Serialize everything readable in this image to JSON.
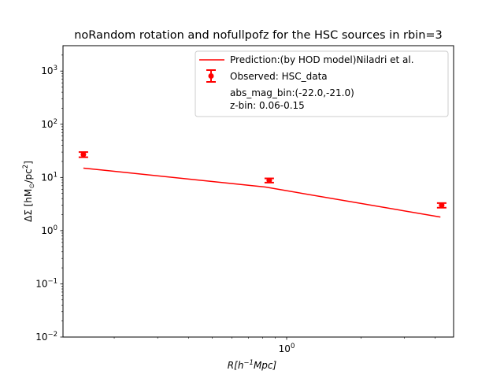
{
  "chart_data": {
    "type": "scatter",
    "title": "noRandom rotation and nofullpofz for the HSC sources in rbin=3",
    "xlabel": "R[h⁻¹Mpc]",
    "ylabel": "ΔΣ [hM⊙/pc²]",
    "xscale": "log",
    "yscale": "log",
    "xlim": [
      0.124,
      4.75
    ],
    "ylim": [
      0.01,
      3000
    ],
    "x_tick_labels": [
      {
        "value": 1,
        "base": "10",
        "exp": "0"
      }
    ],
    "y_tick_labels": [
      {
        "value": 0.01,
        "base": "10",
        "exp": "−2"
      },
      {
        "value": 0.1,
        "base": "10",
        "exp": "−1"
      },
      {
        "value": 1,
        "base": "10",
        "exp": "0"
      },
      {
        "value": 10,
        "base": "10",
        "exp": "1"
      },
      {
        "value": 100,
        "base": "10",
        "exp": "2"
      },
      {
        "value": 1000,
        "base": "10",
        "exp": "3"
      }
    ],
    "grid": false,
    "legend_position": "top-right",
    "series": [
      {
        "name": "Prediction:(by HOD model)Niladri et al.",
        "kind": "line",
        "color": "#ff0000",
        "x": [
          0.15,
          0.82,
          4.2
        ],
        "y": [
          15.0,
          6.6,
          1.8
        ]
      },
      {
        "name": "Observed: HSC_data",
        "kind": "errorbar",
        "color": "#ff0000",
        "x": [
          0.15,
          0.85,
          4.25
        ],
        "y": [
          27.0,
          8.8,
          3.0
        ],
        "yerr_low": [
          3.0,
          0.8,
          0.3
        ],
        "yerr_high": [
          3.0,
          0.8,
          0.3
        ]
      }
    ],
    "legend_notes": [
      "abs_mag_bin:(-22.0,-21.0)",
      "z-bin: 0.06-0.15"
    ]
  }
}
